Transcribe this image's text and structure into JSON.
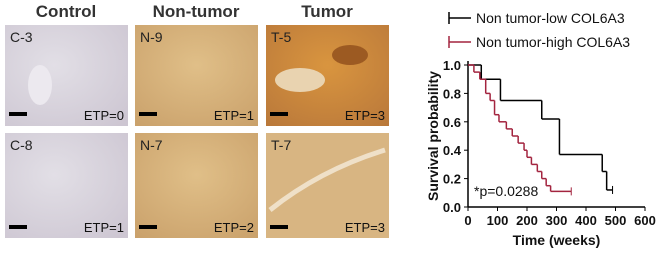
{
  "panels": {
    "headers": [
      "Control",
      "Non-tumor",
      "Tumor"
    ],
    "images": [
      {
        "label": "C-3",
        "etp": "ETP=0"
      },
      {
        "label": "N-9",
        "etp": "ETP=1"
      },
      {
        "label": "T-5",
        "etp": "ETP=3"
      },
      {
        "label": "C-8",
        "etp": "ETP=1"
      },
      {
        "label": "N-7",
        "etp": "ETP=2"
      },
      {
        "label": "T-7",
        "etp": "ETP=3"
      }
    ]
  },
  "chart_data": {
    "type": "step",
    "xlabel": "Time (weeks)",
    "ylabel": "Survival probability",
    "annotation": "*p=0.0288",
    "xlim": [
      0,
      600
    ],
    "xticks": [
      0,
      100,
      200,
      300,
      400,
      500,
      600
    ],
    "ylim": [
      0,
      1
    ],
    "yticks": [
      {
        "value": 0,
        "label": "0.0"
      },
      {
        "value": 0.2,
        "label": "0.2"
      },
      {
        "value": 0.4,
        "label": "0.4"
      },
      {
        "value": 0.6,
        "label": "0.6"
      },
      {
        "value": 0.8,
        "label": "0.8"
      },
      {
        "value": 1,
        "label": "1.0"
      }
    ],
    "series": [
      {
        "name": "Non tumor-low COL6A3",
        "color": "#000000",
        "x": [
          0,
          45,
          110,
          250,
          310,
          455,
          470,
          490
        ],
        "values": [
          1.0,
          0.9,
          0.75,
          0.62,
          0.37,
          0.25,
          0.12,
          0.12
        ]
      },
      {
        "name": "Non tumor-high COL6A3",
        "color": "#a3243f",
        "x": [
          0,
          20,
          40,
          60,
          75,
          90,
          105,
          130,
          150,
          170,
          190,
          200,
          215,
          235,
          250,
          265,
          280,
          350
        ],
        "values": [
          1.0,
          0.95,
          0.9,
          0.8,
          0.75,
          0.65,
          0.6,
          0.55,
          0.5,
          0.45,
          0.4,
          0.35,
          0.3,
          0.25,
          0.2,
          0.15,
          0.11,
          0.11
        ]
      }
    ]
  }
}
